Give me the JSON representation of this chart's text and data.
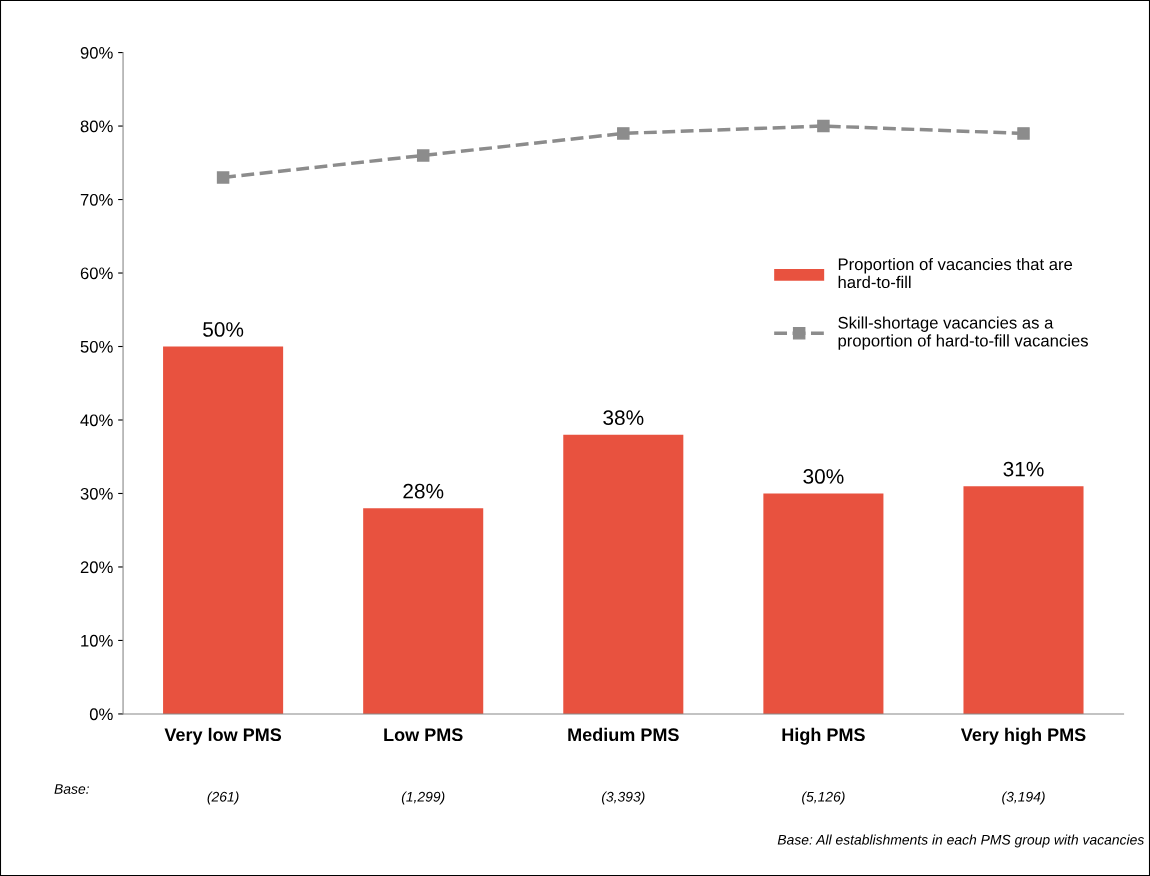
{
  "chart_data": {
    "type": "bar",
    "categories": [
      "Very low PMS",
      "Low PMS",
      "Medium PMS",
      "High PMS",
      "Very high PMS"
    ],
    "series": [
      {
        "name": "Proportion of vacancies that are hard-to-fill",
        "color": "#e8523f",
        "values": [
          50,
          28,
          38,
          30,
          31
        ],
        "value_labels": [
          "50%",
          "28%",
          "38%",
          "30%",
          "31%"
        ]
      },
      {
        "name": "Skill-shortage vacancies as a proportion of hard-to-fill vacancies",
        "type": "line",
        "color": "#8c8c8c",
        "values": [
          73,
          76,
          79,
          80,
          79
        ],
        "marker": "square",
        "line_style": "dashed"
      }
    ],
    "ylim": [
      0,
      90
    ],
    "yticks": [
      {
        "value": 0,
        "label": "0%"
      },
      {
        "value": 10,
        "label": "10%"
      },
      {
        "value": 20,
        "label": "20%"
      },
      {
        "value": 30,
        "label": "30%"
      },
      {
        "value": 40,
        "label": "40%"
      },
      {
        "value": 50,
        "label": "50%"
      },
      {
        "value": 60,
        "label": "60%"
      },
      {
        "value": 70,
        "label": "70%"
      },
      {
        "value": 80,
        "label": "80%"
      },
      {
        "value": 90,
        "label": "90%"
      }
    ],
    "grid": false,
    "legend": "right",
    "annotations": [
      "Base:",
      "(261)",
      "(1,299)",
      "(3,393)",
      "(5,126)",
      "(3,194)",
      "Base: All establishments in each PMS group with vacancies"
    ]
  }
}
